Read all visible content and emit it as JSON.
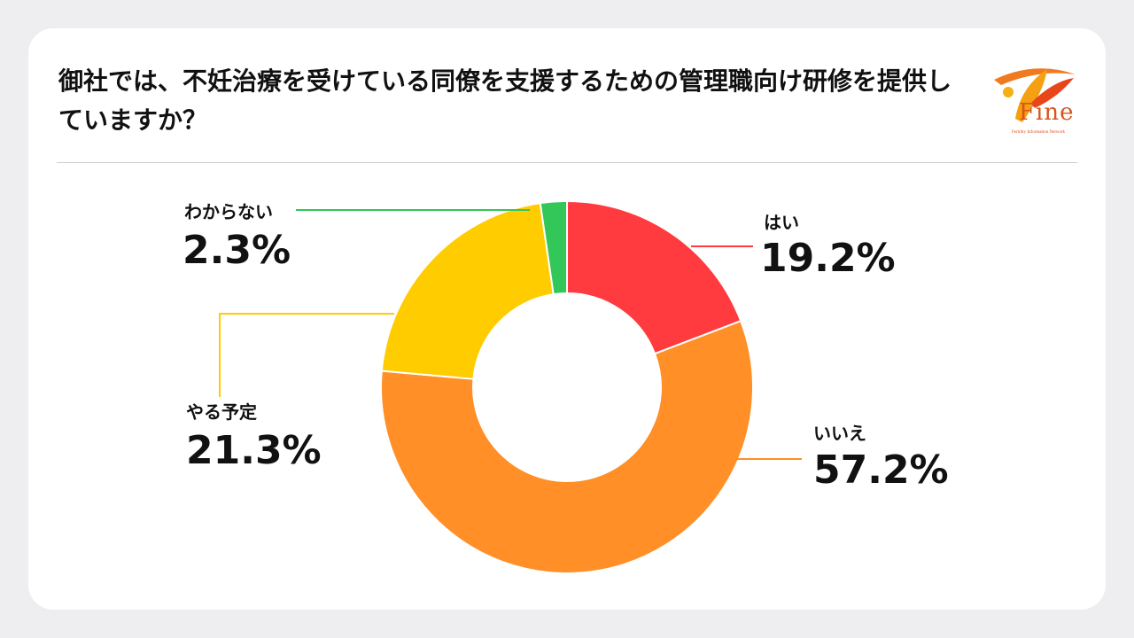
{
  "title": "御社では、不妊治療を受けている同僚を支援するための管理職向け研修を提供していますか？",
  "logo": {
    "text": "Fine",
    "tagline": "Fertility Information Network"
  },
  "chart_data": {
    "type": "pie",
    "variant": "donut",
    "categories": [
      "はい",
      "いいえ",
      "やる予定",
      "わからない"
    ],
    "values": [
      19.2,
      57.2,
      21.3,
      2.3
    ],
    "value_labels": [
      "19.2%",
      "57.2%",
      "21.3%",
      "2.3%"
    ],
    "unit": "%",
    "colors": [
      "#ff3b3f",
      "#ff8f26",
      "#ffcc00",
      "#33c759"
    ],
    "start_angle": "12 o'clock",
    "direction": "clockwise",
    "legend": "none"
  }
}
